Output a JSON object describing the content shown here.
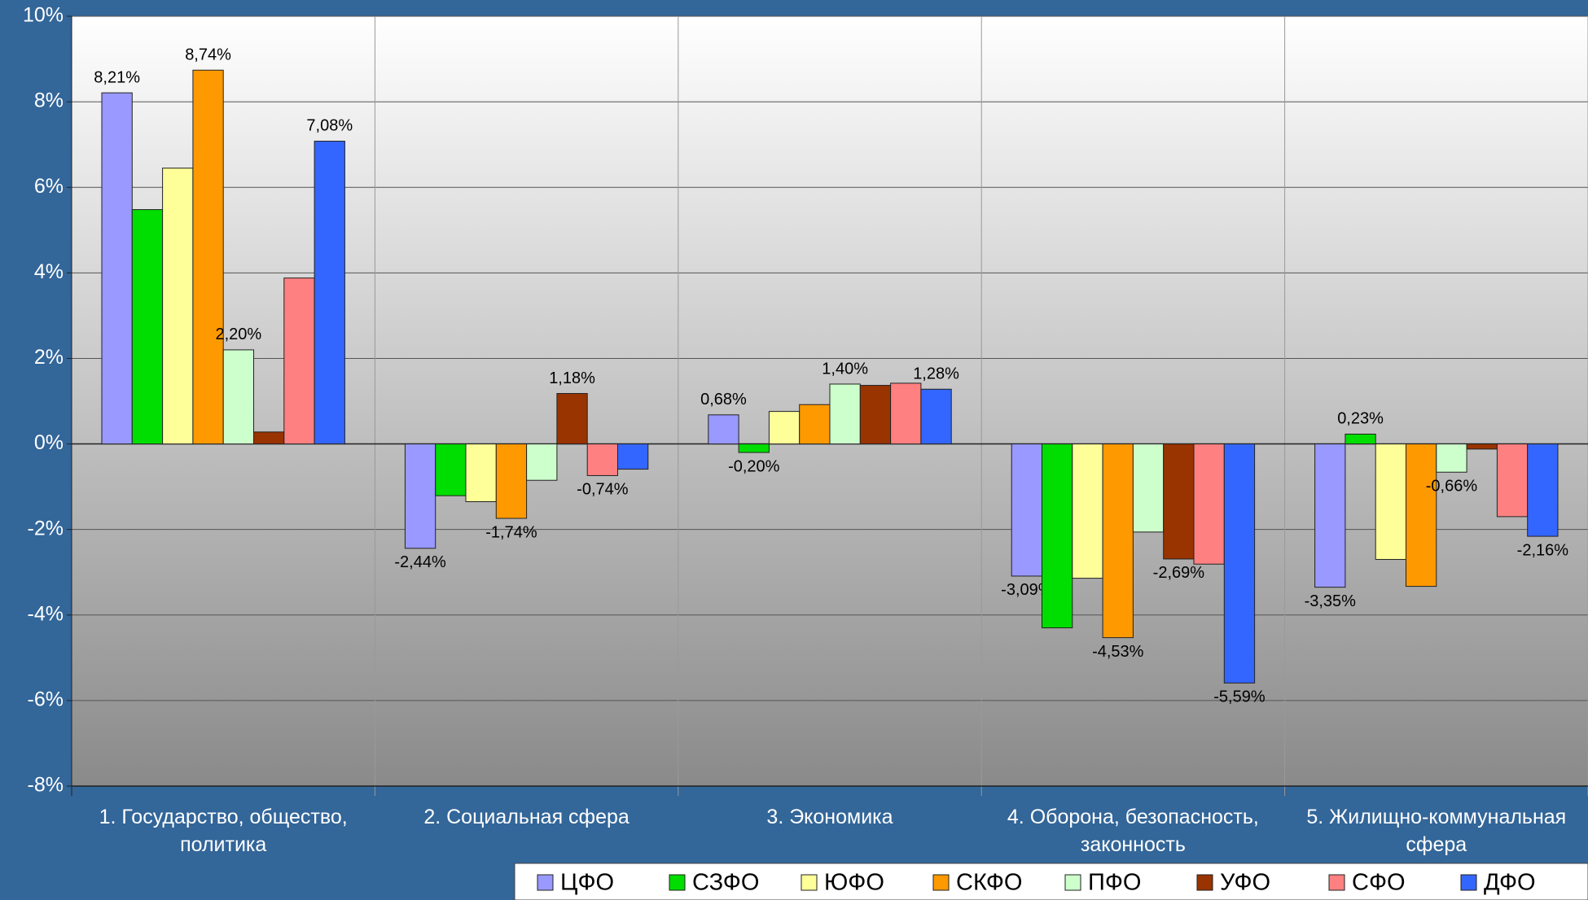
{
  "chart_data": {
    "type": "bar",
    "categories": [
      "1. Государство, общество, политика",
      "2. Социальная сфера",
      "3. Экономика",
      "4. Оборона, безопасность, законность",
      "5. Жилищно-коммунальная сфера"
    ],
    "series": [
      {
        "name": "ЦФО",
        "color": "#9999ff",
        "values": [
          8.21,
          -2.44,
          0.68,
          -3.09,
          -3.35
        ],
        "value_labels": [
          "8,21%",
          "-2,44%",
          "0,68%",
          "-3,09%",
          "-3,35%"
        ]
      },
      {
        "name": "СЗФО",
        "color": "#00dd00",
        "values": [
          5.48,
          -1.21,
          -0.2,
          -4.3,
          0.23
        ],
        "value_labels": [
          null,
          null,
          "-0,20%",
          null,
          "0,23%"
        ]
      },
      {
        "name": "ЮФО",
        "color": "#ffff99",
        "values": [
          6.45,
          -1.35,
          0.76,
          -3.14,
          -2.7
        ],
        "value_labels": [
          null,
          null,
          null,
          null,
          null
        ]
      },
      {
        "name": "СКФО",
        "color": "#ff9900",
        "values": [
          8.74,
          -1.74,
          0.92,
          -4.53,
          -3.33
        ],
        "value_labels": [
          "8,74%",
          "-1,74%",
          null,
          "-4,53%",
          null
        ]
      },
      {
        "name": "ПФО",
        "color": "#ccffcc",
        "values": [
          2.2,
          -0.85,
          1.4,
          -2.06,
          -0.66
        ],
        "value_labels": [
          "2,20%",
          null,
          "1,40%",
          null,
          "-0,66%"
        ]
      },
      {
        "name": "УФО",
        "color": "#993300",
        "values": [
          0.28,
          1.18,
          1.37,
          -2.69,
          -0.12
        ],
        "value_labels": [
          null,
          "1,18%",
          null,
          "-2,69%",
          null
        ]
      },
      {
        "name": "СФО",
        "color": "#ff8080",
        "values": [
          3.88,
          -0.74,
          1.42,
          -2.81,
          -1.7
        ],
        "value_labels": [
          null,
          "-0,74%",
          null,
          null,
          null
        ]
      },
      {
        "name": "ДФО",
        "color": "#3366ff",
        "values": [
          7.08,
          -0.59,
          1.28,
          -5.59,
          -2.16
        ],
        "value_labels": [
          "7,08%",
          null,
          "1,28%",
          "-5,59%",
          "-2,16%"
        ]
      }
    ],
    "ylim": [
      -8,
      10
    ],
    "yticks": [
      {
        "value": -8,
        "label": "-8%"
      },
      {
        "value": -6,
        "label": "-6%"
      },
      {
        "value": -4,
        "label": "-4%"
      },
      {
        "value": -2,
        "label": "-2%"
      },
      {
        "value": 0,
        "label": "0%"
      },
      {
        "value": 2,
        "label": "2%"
      },
      {
        "value": 4,
        "label": "4%"
      },
      {
        "value": 6,
        "label": "6%"
      },
      {
        "value": 8,
        "label": "8%"
      },
      {
        "value": 10,
        "label": "10%"
      }
    ],
    "grid": true,
    "legend": "bottom"
  }
}
